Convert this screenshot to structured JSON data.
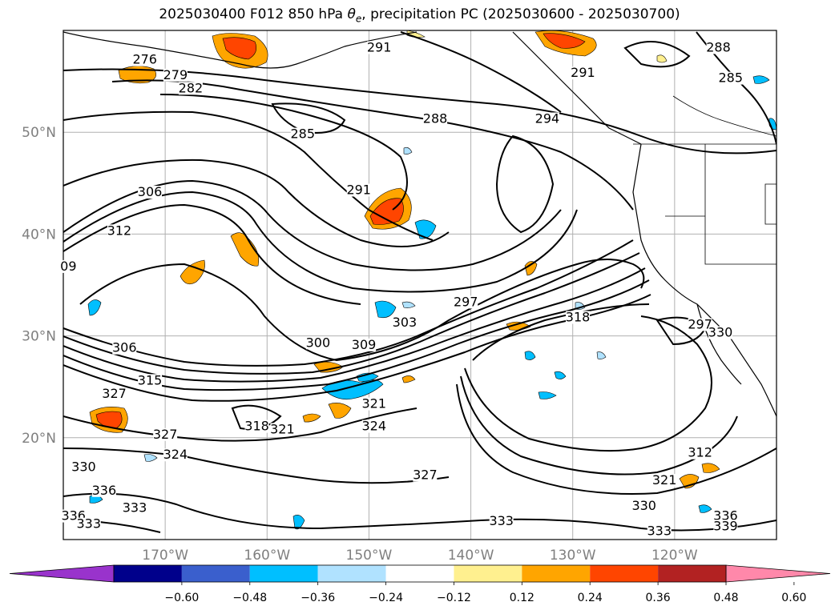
{
  "title_prefix": "2025030400 F012 850 hPa ",
  "title_var": "θ",
  "title_var_sub": "e",
  "title_suffix": ", precipitation PC (2025030600 - 2025030700)",
  "lat_labels": [
    "50°N",
    "40°N",
    "30°N",
    "20°N"
  ],
  "lon_labels": [
    "170°W",
    "160°W",
    "150°W",
    "140°W",
    "130°W",
    "120°W"
  ],
  "colorbar": {
    "colors": [
      "#9933cc",
      "#00008b",
      "#3a5fcd",
      "#00bfff",
      "#b0e2ff",
      "#ffffff",
      "#fff08f",
      "#ffa500",
      "#ff4500",
      "#b22222",
      "#ff88aa"
    ],
    "tick_labels": [
      "−0.60",
      "−0.48",
      "−0.36",
      "−0.24",
      "−0.12",
      "0.12",
      "0.24",
      "0.36",
      "0.48",
      "0.60"
    ],
    "extend": "both"
  },
  "contour_labels": [
    {
      "text": "276",
      "lon": -172.0,
      "lat": 56.8
    },
    {
      "text": "279",
      "lon": -169.0,
      "lat": 55.3
    },
    {
      "text": "282",
      "lon": -167.5,
      "lat": 54.0
    },
    {
      "text": "285",
      "lon": -156.5,
      "lat": 49.5
    },
    {
      "text": "288",
      "lon": -143.5,
      "lat": 51.0
    },
    {
      "text": "291",
      "lon": -149.0,
      "lat": 58.0
    },
    {
      "text": "291",
      "lon": -151.0,
      "lat": 44.0
    },
    {
      "text": "291",
      "lon": -129.0,
      "lat": 55.5
    },
    {
      "text": "294",
      "lon": -132.5,
      "lat": 51.0
    },
    {
      "text": "288",
      "lon": -115.7,
      "lat": 58.0
    },
    {
      "text": "285",
      "lon": -114.5,
      "lat": 55.0
    },
    {
      "text": "306",
      "lon": -171.5,
      "lat": 43.8
    },
    {
      "text": "312",
      "lon": -174.5,
      "lat": 40.0
    },
    {
      "text": "09",
      "lon": -179.5,
      "lat": 36.5
    },
    {
      "text": "297",
      "lon": -140.5,
      "lat": 33.0
    },
    {
      "text": "303",
      "lon": -146.5,
      "lat": 31.0
    },
    {
      "text": "309",
      "lon": -150.5,
      "lat": 28.8
    },
    {
      "text": "318",
      "lon": -129.5,
      "lat": 31.5
    },
    {
      "text": "297",
      "lon": -117.5,
      "lat": 30.8
    },
    {
      "text": "300",
      "lon": -155.0,
      "lat": 29.0
    },
    {
      "text": "306",
      "lon": -174.0,
      "lat": 28.5
    },
    {
      "text": "315",
      "lon": -171.5,
      "lat": 25.3
    },
    {
      "text": "327",
      "lon": -175.0,
      "lat": 24.0
    },
    {
      "text": "321",
      "lon": -149.5,
      "lat": 23.0
    },
    {
      "text": "318",
      "lon": -161.0,
      "lat": 20.8
    },
    {
      "text": "321",
      "lon": -158.5,
      "lat": 20.5
    },
    {
      "text": "324",
      "lon": -149.5,
      "lat": 20.8
    },
    {
      "text": "327",
      "lon": -170.0,
      "lat": 20.0
    },
    {
      "text": "324",
      "lon": -169.0,
      "lat": 18.0
    },
    {
      "text": "330",
      "lon": -178.0,
      "lat": 16.8
    },
    {
      "text": "336",
      "lon": -176.0,
      "lat": 14.5
    },
    {
      "text": "333",
      "lon": -173.0,
      "lat": 12.8
    },
    {
      "text": "336",
      "lon": -179.0,
      "lat": 12.0
    },
    {
      "text": "333",
      "lon": -177.5,
      "lat": 11.2
    },
    {
      "text": "327",
      "lon": -144.5,
      "lat": 16.0
    },
    {
      "text": "333",
      "lon": -137.0,
      "lat": 11.5
    },
    {
      "text": "312",
      "lon": -117.5,
      "lat": 18.2
    },
    {
      "text": "321",
      "lon": -121.0,
      "lat": 15.5
    },
    {
      "text": "330",
      "lon": -123.0,
      "lat": 13.0
    },
    {
      "text": "333",
      "lon": -121.5,
      "lat": 10.5
    },
    {
      "text": "336",
      "lon": -115.0,
      "lat": 12.0
    },
    {
      "text": "339",
      "lon": -115.0,
      "lat": 11.0
    },
    {
      "text": "330",
      "lon": -115.5,
      "lat": 30.0
    }
  ]
}
